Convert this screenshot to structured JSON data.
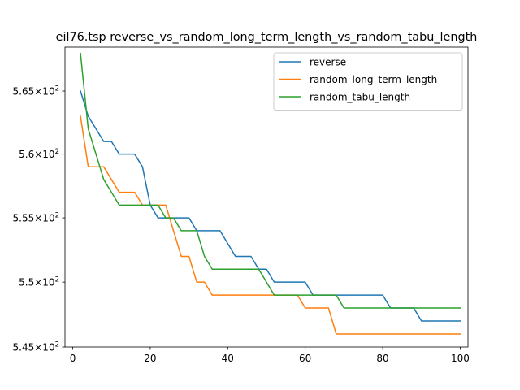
{
  "chart_data": {
    "type": "line",
    "title": "eil76.tsp  reverse_vs_random_long_term_length_vs_random_tabu_length",
    "xlabel": "",
    "ylabel": "",
    "xlim": [
      -2,
      102
    ],
    "ylim": [
      545,
      568.5
    ],
    "yscale": "log",
    "x_ticks": [
      0,
      20,
      40,
      60,
      80,
      100
    ],
    "x_tick_labels": [
      "0",
      "20",
      "40",
      "60",
      "80",
      "100"
    ],
    "y_ticks": [
      {
        "value": 565,
        "mantissa": "5.65"
      },
      {
        "value": 560,
        "mantissa": "5.6"
      },
      {
        "value": 555,
        "mantissa": "5.55"
      },
      {
        "value": 550,
        "mantissa": "5.5"
      },
      {
        "value": 545,
        "mantissa": "5.45"
      }
    ],
    "y_tick_base": "×10",
    "y_tick_exp": "2",
    "grid": false,
    "legend_position": "top-right",
    "x": [
      2,
      4,
      6,
      8,
      10,
      12,
      14,
      16,
      18,
      20,
      22,
      24,
      26,
      28,
      30,
      32,
      34,
      36,
      38,
      40,
      42,
      44,
      46,
      48,
      50,
      52,
      54,
      56,
      58,
      60,
      62,
      64,
      66,
      68,
      70,
      72,
      74,
      76,
      78,
      80,
      82,
      84,
      86,
      88,
      90,
      92,
      94,
      96,
      98,
      100
    ],
    "series": [
      {
        "name": "reverse",
        "color": "#1f77b4",
        "values": [
          565,
          563,
          562,
          561,
          561,
          560,
          560,
          560,
          559,
          556,
          555,
          555,
          555,
          555,
          555,
          554,
          554,
          554,
          554,
          553,
          552,
          552,
          552,
          551,
          551,
          550,
          550,
          550,
          550,
          550,
          549,
          549,
          549,
          549,
          549,
          549,
          549,
          549,
          549,
          549,
          548,
          548,
          548,
          548,
          547,
          547,
          547,
          547,
          547,
          547
        ]
      },
      {
        "name": "random_long_term_length",
        "color": "#ff7f0e",
        "values": [
          563,
          559,
          559,
          559,
          558,
          557,
          557,
          557,
          556,
          556,
          556,
          556,
          554,
          552,
          552,
          550,
          550,
          549,
          549,
          549,
          549,
          549,
          549,
          549,
          549,
          549,
          549,
          549,
          549,
          548,
          548,
          548,
          548,
          546,
          546,
          546,
          546,
          546,
          546,
          546,
          546,
          546,
          546,
          546,
          546,
          546,
          546,
          546,
          546,
          546
        ]
      },
      {
        "name": "random_tabu_length",
        "color": "#2ca02c",
        "values": [
          568,
          562,
          560,
          558,
          557,
          556,
          556,
          556,
          556,
          556,
          556,
          555,
          555,
          554,
          554,
          554,
          552,
          551,
          551,
          551,
          551,
          551,
          551,
          551,
          550,
          549,
          549,
          549,
          549,
          549,
          549,
          549,
          549,
          549,
          548,
          548,
          548,
          548,
          548,
          548,
          548,
          548,
          548,
          548,
          548,
          548,
          548,
          548,
          548,
          548
        ]
      }
    ]
  }
}
